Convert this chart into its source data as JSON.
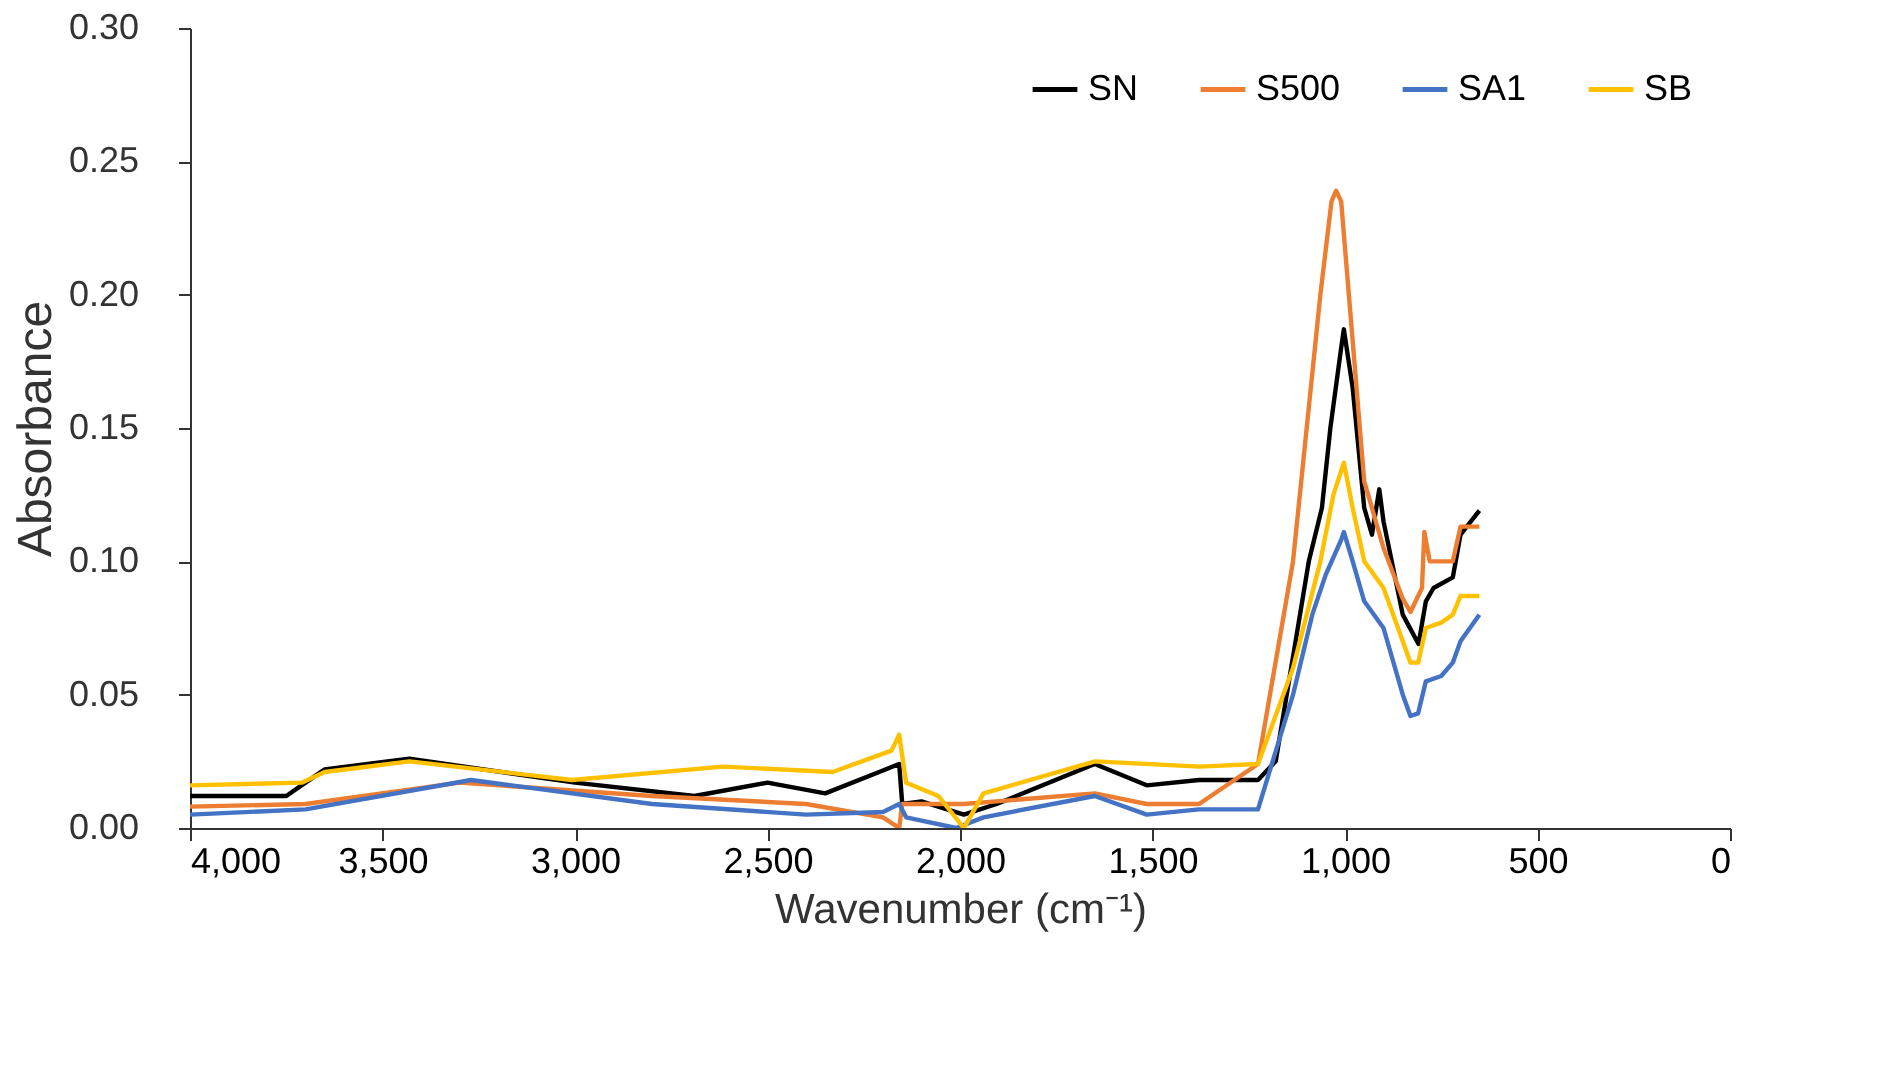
{
  "chart_data": {
    "type": "line",
    "xlabel": "Wavenumber (cm⁻¹)",
    "ylabel": "Absorbance",
    "xlim": [
      4000,
      0
    ],
    "ylim": [
      0,
      0.3
    ],
    "xticks": [
      {
        "value": 4000,
        "label": "4,000"
      },
      {
        "value": 3500,
        "label": "3,500"
      },
      {
        "value": 3000,
        "label": "3,000"
      },
      {
        "value": 2500,
        "label": "2,500"
      },
      {
        "value": 2000,
        "label": "2,000"
      },
      {
        "value": 1500,
        "label": "1,500"
      },
      {
        "value": 1000,
        "label": "1,000"
      },
      500,
      0
    ],
    "yticks": [
      {
        "value": 0,
        "label": "0.00"
      },
      {
        "value": 0.05,
        "label": "0.05"
      },
      {
        "value": 0.1,
        "label": "0.10"
      },
      {
        "value": 0.15,
        "label": "0.15"
      },
      {
        "value": 0.2,
        "label": "0.20"
      },
      {
        "value": 0.25,
        "label": "0.25"
      },
      {
        "value": 0.3,
        "label": "0.30"
      }
    ],
    "grid": false,
    "legend": "top right",
    "line_style": "solid",
    "marker": "none",
    "series": [
      {
        "name": "SN",
        "color": "#000000",
        "x": [
          4000,
          3750,
          3700,
          3650,
          3430,
          3000,
          2690,
          2500,
          2350,
          2210,
          2158,
          2150,
          2100,
          1990,
          1905,
          1650,
          1515,
          1379,
          1226,
          1180,
          1094,
          1060,
          1038,
          1010,
          1003,
          980,
          970,
          950,
          930,
          911,
          900,
          850,
          809,
          790,
          770,
          720,
          700,
          651
        ],
        "values": [
          0.012,
          0.012,
          0.017,
          0.022,
          0.026,
          0.017,
          0.012,
          0.017,
          0.013,
          0.021,
          0.024,
          0.009,
          0.01,
          0.005,
          0.009,
          0.024,
          0.016,
          0.018,
          0.018,
          0.025,
          0.1,
          0.12,
          0.15,
          0.18,
          0.187,
          0.165,
          0.15,
          0.12,
          0.11,
          0.127,
          0.115,
          0.08,
          0.069,
          0.085,
          0.09,
          0.094,
          0.11,
          0.119
        ]
      },
      {
        "name": "S500",
        "color": "#ed7d31",
        "x": [
          4000,
          3700,
          3300,
          2800,
          2400,
          2200,
          2158,
          2150,
          2100,
          1990,
          1650,
          1515,
          1379,
          1226,
          1135,
          1064,
          1035,
          1023,
          1010,
          950,
          900,
          850,
          830,
          800,
          794,
          780,
          720,
          700,
          651
        ],
        "values": [
          0.008,
          0.009,
          0.017,
          0.012,
          0.009,
          0.004,
          0.0,
          0.009,
          0.009,
          0.009,
          0.013,
          0.009,
          0.009,
          0.024,
          0.1,
          0.2,
          0.235,
          0.239,
          0.235,
          0.13,
          0.105,
          0.086,
          0.081,
          0.09,
          0.111,
          0.1,
          0.1,
          0.113,
          0.113
        ]
      },
      {
        "name": "SA1",
        "color": "#4472c4",
        "x": [
          4000,
          3700,
          3270,
          2800,
          2400,
          2200,
          2158,
          2140,
          2010,
          1939,
          1650,
          1515,
          1379,
          1226,
          1135,
          1085,
          1050,
          1010,
          1003,
          980,
          950,
          900,
          850,
          830,
          810,
          790,
          750,
          720,
          700,
          651
        ],
        "values": [
          0.005,
          0.007,
          0.018,
          0.009,
          0.005,
          0.006,
          0.009,
          0.004,
          0.0,
          0.004,
          0.012,
          0.005,
          0.007,
          0.007,
          0.05,
          0.08,
          0.095,
          0.108,
          0.111,
          0.1,
          0.085,
          0.075,
          0.05,
          0.042,
          0.043,
          0.055,
          0.057,
          0.062,
          0.07,
          0.08
        ]
      },
      {
        "name": "SB",
        "color": "#ffc000",
        "x": [
          4000,
          3710,
          3650,
          3430,
          3008,
          2616,
          2331,
          2178,
          2158,
          2140,
          2056,
          1990,
          1939,
          1649,
          1379,
          1226,
          1135,
          1064,
          1030,
          1003,
          980,
          950,
          900,
          850,
          830,
          810,
          790,
          750,
          720,
          700,
          651
        ],
        "values": [
          0.016,
          0.017,
          0.021,
          0.025,
          0.018,
          0.023,
          0.021,
          0.029,
          0.035,
          0.017,
          0.012,
          0.0,
          0.013,
          0.025,
          0.023,
          0.024,
          0.06,
          0.1,
          0.125,
          0.137,
          0.12,
          0.1,
          0.09,
          0.07,
          0.062,
          0.062,
          0.075,
          0.077,
          0.08,
          0.087,
          0.087
        ]
      }
    ]
  }
}
